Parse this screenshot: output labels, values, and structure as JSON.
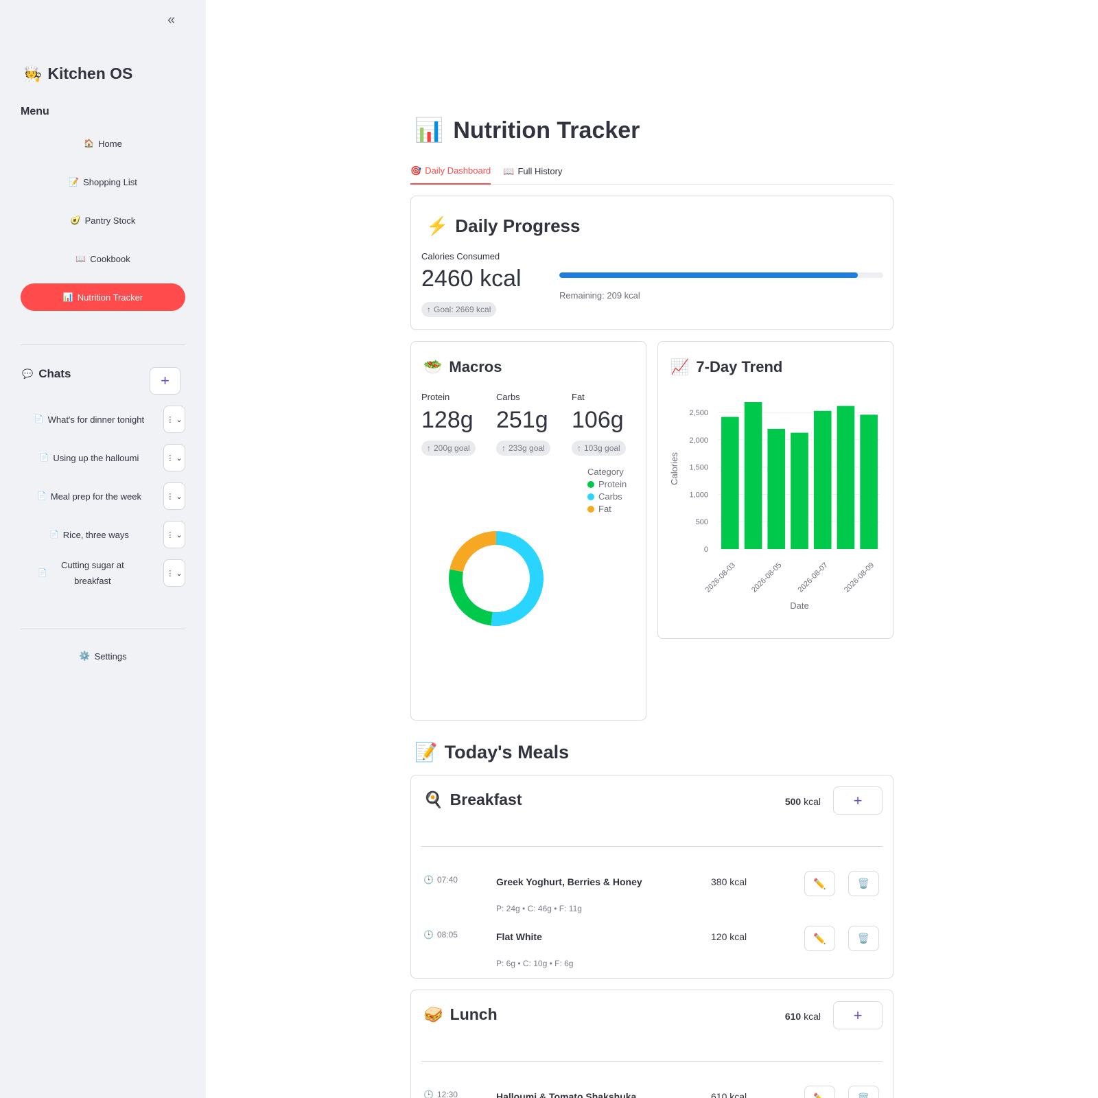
{
  "sidebar": {
    "collapse_icon": "«",
    "brand": {
      "icon": "🧑‍🍳",
      "name": "Kitchen OS"
    },
    "menu_title": "Menu",
    "nav": [
      {
        "icon": "🏠",
        "label": "Home"
      },
      {
        "icon": "📝",
        "label": "Shopping List"
      },
      {
        "icon": "🥑",
        "label": "Pantry Stock"
      },
      {
        "icon": "📖",
        "label": "Cookbook"
      },
      {
        "icon": "📊",
        "label": "Nutrition Tracker",
        "active": true
      }
    ],
    "chats_title": "Chats",
    "chats_icon": "💬",
    "add_chat_label": "+",
    "chats": [
      {
        "icon": "📄",
        "label": "What's for dinner tonight"
      },
      {
        "icon": "📄",
        "label": "Using up the halloumi"
      },
      {
        "icon": "📄",
        "label": "Meal prep for the week"
      },
      {
        "icon": "📄",
        "label": "Rice, three ways"
      },
      {
        "icon": "📄",
        "label": "Cutting sugar at breakfast"
      }
    ],
    "chat_menu_icon": "⋮",
    "chat_menu_chevron": "⌄",
    "settings": {
      "icon": "⚙️",
      "label": "Settings"
    }
  },
  "page": {
    "icon": "📊",
    "title": "Nutrition Tracker",
    "tabs": [
      {
        "icon": "🎯",
        "label": "Daily Dashboard",
        "active": true
      },
      {
        "icon": "📖",
        "label": "Full History"
      }
    ]
  },
  "daily_progress": {
    "icon": "⚡",
    "title": "Daily Progress",
    "metric_label": "Calories Consumed",
    "value": "2460 kcal",
    "delta": "Goal: 2669 kcal",
    "progress_fraction": 0.922,
    "remaining": "Remaining: 209 kcal",
    "bar_color": "#1e7de0"
  },
  "macros": {
    "icon": "🥗",
    "title": "Macros",
    "items": [
      {
        "label": "Protein",
        "value": "128g",
        "goal": "200g goal"
      },
      {
        "label": "Carbs",
        "value": "251g",
        "goal": "233g goal"
      },
      {
        "label": "Fat",
        "value": "106g",
        "goal": "103g goal"
      }
    ],
    "legend_title": "Category"
  },
  "trend": {
    "icon": "📈",
    "title": "7-Day Trend"
  },
  "chart_data": [
    {
      "type": "pie",
      "donut": true,
      "legend_title": "Category",
      "legend_position": "top-right",
      "categories": [
        "Protein",
        "Carbs",
        "Fat"
      ],
      "values": [
        128,
        251,
        106
      ],
      "colors": [
        "#00c84a",
        "#29d5ff",
        "#f7a823"
      ]
    },
    {
      "type": "bar",
      "x": [
        "2026-08-03",
        "2026-08-04",
        "2026-08-05",
        "2026-08-06",
        "2026-08-07",
        "2026-08-08",
        "2026-08-09"
      ],
      "x_tick_labels": [
        "2026-08-03",
        "2026-08-05",
        "2026-08-07",
        "2026-08-09"
      ],
      "values": [
        2420,
        2690,
        2200,
        2130,
        2530,
        2620,
        2460
      ],
      "xlabel": "Date",
      "ylabel": "Calories",
      "ylim": [
        0,
        2690
      ],
      "yticks": [
        "0",
        "500",
        "1,000",
        "1,500",
        "2,000",
        "2,500"
      ],
      "ytick_values": [
        0,
        500,
        1000,
        1500,
        2000,
        2500
      ],
      "grid": true,
      "color": "#00c84a"
    }
  ],
  "meals": {
    "icon": "📝",
    "title": "Today's Meals",
    "add_label": "+",
    "edit_icon": "✏️",
    "delete_icon": "🗑️",
    "time_icon": "🕒",
    "groups": [
      {
        "icon": "🍳",
        "name": "Breakfast",
        "kcal_value": "500",
        "kcal_unit": "kcal",
        "entries": [
          {
            "time": "07:40",
            "name": "Greek Yoghurt, Berries & Honey",
            "kcal": "380 kcal",
            "macros": "P: 24g • C: 46g • F: 11g"
          },
          {
            "time": "08:05",
            "name": "Flat White",
            "kcal": "120 kcal",
            "macros": "P: 6g • C: 10g • F: 6g"
          }
        ]
      },
      {
        "icon": "🥪",
        "name": "Lunch",
        "kcal_value": "610",
        "kcal_unit": "kcal",
        "entries": [
          {
            "time": "12:30",
            "name": "Halloumi & Tomato Shakshuka",
            "kcal": "610 kcal",
            "macros": ""
          }
        ]
      }
    ]
  }
}
